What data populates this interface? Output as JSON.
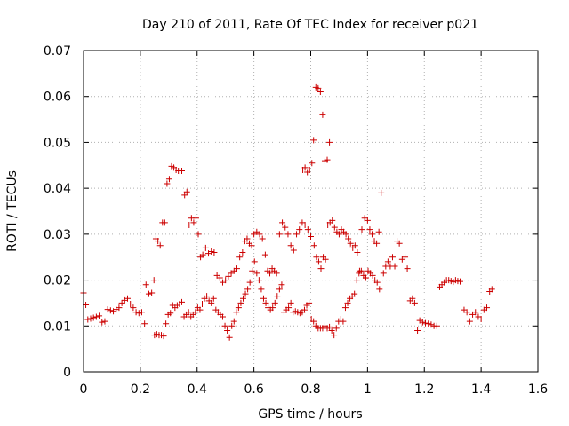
{
  "chart_data": {
    "type": "scatter",
    "title": "Day 210 of 2011, Rate Of TEC Index for receiver p021",
    "xlabel": "GPS time / hours",
    "ylabel": "ROTI / TECUs",
    "xlim": [
      0,
      1.6
    ],
    "ylim": [
      0,
      0.07
    ],
    "x_ticks": [
      0,
      0.2,
      0.4,
      0.6,
      0.8,
      1,
      1.2,
      1.4,
      1.6
    ],
    "x_tick_labels": [
      "0",
      "0.2",
      "0.4",
      "0.6",
      "0.8",
      "1",
      "1.2",
      "1.4",
      "1.6"
    ],
    "y_ticks": [
      0,
      0.01,
      0.02,
      0.03,
      0.04,
      0.05,
      0.06,
      0.07
    ],
    "y_tick_labels": [
      "0",
      "0.01",
      "0.02",
      "0.03",
      "0.04",
      "0.05",
      "0.06",
      "0.07"
    ],
    "grid": true,
    "marker": "+",
    "marker_color": "#cc0000",
    "series": [
      {
        "points": [
          [
            0.0,
            0.0172
          ],
          [
            0.008,
            0.0146
          ],
          [
            0.015,
            0.0114
          ],
          [
            0.025,
            0.0116
          ],
          [
            0.035,
            0.0118
          ],
          [
            0.045,
            0.012
          ],
          [
            0.055,
            0.0122
          ],
          [
            0.065,
            0.0108
          ],
          [
            0.075,
            0.011
          ],
          [
            0.085,
            0.0136
          ],
          [
            0.095,
            0.0134
          ],
          [
            0.105,
            0.0132
          ],
          [
            0.115,
            0.0136
          ],
          [
            0.125,
            0.014
          ],
          [
            0.135,
            0.015
          ],
          [
            0.145,
            0.0156
          ],
          [
            0.155,
            0.016
          ],
          [
            0.165,
            0.0148
          ],
          [
            0.175,
            0.014
          ],
          [
            0.185,
            0.013
          ],
          [
            0.195,
            0.0128
          ],
          [
            0.205,
            0.013
          ],
          [
            0.215,
            0.0105
          ],
          [
            0.22,
            0.019
          ],
          [
            0.23,
            0.017
          ],
          [
            0.24,
            0.0172
          ],
          [
            0.248,
            0.02
          ],
          [
            0.255,
            0.029
          ],
          [
            0.262,
            0.0285
          ],
          [
            0.27,
            0.0275
          ],
          [
            0.278,
            0.0325
          ],
          [
            0.286,
            0.0325
          ],
          [
            0.294,
            0.041
          ],
          [
            0.302,
            0.042
          ],
          [
            0.31,
            0.0448
          ],
          [
            0.318,
            0.0445
          ],
          [
            0.326,
            0.044
          ],
          [
            0.334,
            0.0438
          ],
          [
            0.346,
            0.0438
          ],
          [
            0.356,
            0.0385
          ],
          [
            0.364,
            0.0392
          ],
          [
            0.372,
            0.032
          ],
          [
            0.38,
            0.0335
          ],
          [
            0.388,
            0.0325
          ],
          [
            0.396,
            0.0335
          ],
          [
            0.404,
            0.03
          ],
          [
            0.412,
            0.025
          ],
          [
            0.42,
            0.0255
          ],
          [
            0.43,
            0.027
          ],
          [
            0.44,
            0.0258
          ],
          [
            0.45,
            0.0262
          ],
          [
            0.46,
            0.026
          ],
          [
            0.47,
            0.021
          ],
          [
            0.48,
            0.0205
          ],
          [
            0.49,
            0.0195
          ],
          [
            0.5,
            0.02
          ],
          [
            0.51,
            0.0208
          ],
          [
            0.52,
            0.0215
          ],
          [
            0.53,
            0.022
          ],
          [
            0.54,
            0.0225
          ],
          [
            0.55,
            0.025
          ],
          [
            0.56,
            0.026
          ],
          [
            0.568,
            0.0285
          ],
          [
            0.576,
            0.029
          ],
          [
            0.584,
            0.028
          ],
          [
            0.592,
            0.0275
          ],
          [
            0.6,
            0.03
          ],
          [
            0.61,
            0.0305
          ],
          [
            0.62,
            0.03
          ],
          [
            0.63,
            0.029
          ],
          [
            0.64,
            0.0255
          ],
          [
            0.648,
            0.022
          ],
          [
            0.656,
            0.0215
          ],
          [
            0.664,
            0.0225
          ],
          [
            0.672,
            0.022
          ],
          [
            0.68,
            0.0215
          ],
          [
            0.69,
            0.03
          ],
          [
            0.7,
            0.0325
          ],
          [
            0.71,
            0.0315
          ],
          [
            0.72,
            0.03
          ],
          [
            0.73,
            0.0275
          ],
          [
            0.74,
            0.0265
          ],
          [
            0.75,
            0.03
          ],
          [
            0.76,
            0.031
          ],
          [
            0.77,
            0.0325
          ],
          [
            0.78,
            0.032
          ],
          [
            0.79,
            0.031
          ],
          [
            0.772,
            0.044
          ],
          [
            0.78,
            0.0445
          ],
          [
            0.788,
            0.0435
          ],
          [
            0.796,
            0.044
          ],
          [
            0.804,
            0.0455
          ],
          [
            0.81,
            0.0505
          ],
          [
            0.818,
            0.062
          ],
          [
            0.826,
            0.0618
          ],
          [
            0.834,
            0.061
          ],
          [
            0.842,
            0.056
          ],
          [
            0.85,
            0.046
          ],
          [
            0.858,
            0.0462
          ],
          [
            0.866,
            0.05
          ],
          [
            0.8,
            0.0295
          ],
          [
            0.812,
            0.0275
          ],
          [
            0.82,
            0.025
          ],
          [
            0.828,
            0.024
          ],
          [
            0.836,
            0.0225
          ],
          [
            0.844,
            0.025
          ],
          [
            0.852,
            0.0245
          ],
          [
            0.86,
            0.032
          ],
          [
            0.868,
            0.0325
          ],
          [
            0.876,
            0.033
          ],
          [
            0.884,
            0.0315
          ],
          [
            0.892,
            0.0305
          ],
          [
            0.9,
            0.03
          ],
          [
            0.908,
            0.031
          ],
          [
            0.916,
            0.0305
          ],
          [
            0.924,
            0.03
          ],
          [
            0.932,
            0.029
          ],
          [
            0.94,
            0.028
          ],
          [
            0.948,
            0.027
          ],
          [
            0.956,
            0.0275
          ],
          [
            0.964,
            0.026
          ],
          [
            0.972,
            0.022
          ],
          [
            0.98,
            0.031
          ],
          [
            0.99,
            0.0335
          ],
          [
            1.0,
            0.033
          ],
          [
            1.008,
            0.031
          ],
          [
            1.016,
            0.03
          ],
          [
            1.024,
            0.0285
          ],
          [
            1.032,
            0.028
          ],
          [
            1.04,
            0.0305
          ],
          [
            1.048,
            0.039
          ],
          [
            1.056,
            0.0215
          ],
          [
            1.064,
            0.023
          ],
          [
            1.072,
            0.024
          ],
          [
            1.08,
            0.023
          ],
          [
            1.088,
            0.025
          ],
          [
            1.096,
            0.023
          ],
          [
            1.104,
            0.0285
          ],
          [
            1.112,
            0.028
          ],
          [
            1.122,
            0.0245
          ],
          [
            1.132,
            0.025
          ],
          [
            1.14,
            0.0225
          ],
          [
            1.15,
            0.0155
          ],
          [
            1.158,
            0.016
          ],
          [
            1.166,
            0.015
          ],
          [
            1.176,
            0.009
          ],
          [
            1.184,
            0.0112
          ],
          [
            1.194,
            0.0108
          ],
          [
            1.204,
            0.0106
          ],
          [
            1.214,
            0.0105
          ],
          [
            1.224,
            0.0103
          ],
          [
            1.234,
            0.01
          ],
          [
            1.244,
            0.01
          ],
          [
            1.254,
            0.0185
          ],
          [
            1.262,
            0.019
          ],
          [
            1.27,
            0.0195
          ],
          [
            1.278,
            0.02
          ],
          [
            1.286,
            0.02
          ],
          [
            1.294,
            0.0198
          ],
          [
            1.302,
            0.0196
          ],
          [
            1.31,
            0.02
          ],
          [
            1.318,
            0.0198
          ],
          [
            1.326,
            0.0197
          ],
          [
            1.34,
            0.0135
          ],
          [
            1.35,
            0.013
          ],
          [
            1.36,
            0.011
          ],
          [
            1.37,
            0.0125
          ],
          [
            1.38,
            0.013
          ],
          [
            1.39,
            0.012
          ],
          [
            1.4,
            0.0115
          ],
          [
            1.41,
            0.0135
          ],
          [
            1.42,
            0.014
          ],
          [
            1.43,
            0.0175
          ],
          [
            1.438,
            0.018
          ],
          [
            0.25,
            0.008
          ],
          [
            0.258,
            0.0082
          ],
          [
            0.266,
            0.008
          ],
          [
            0.274,
            0.008
          ],
          [
            0.282,
            0.0078
          ],
          [
            0.29,
            0.0105
          ],
          [
            0.298,
            0.0125
          ],
          [
            0.306,
            0.0128
          ],
          [
            0.314,
            0.0145
          ],
          [
            0.322,
            0.014
          ],
          [
            0.33,
            0.0145
          ],
          [
            0.338,
            0.0148
          ],
          [
            0.346,
            0.0152
          ],
          [
            0.354,
            0.012
          ],
          [
            0.362,
            0.0125
          ],
          [
            0.37,
            0.013
          ],
          [
            0.378,
            0.012
          ],
          [
            0.386,
            0.0125
          ],
          [
            0.394,
            0.013
          ],
          [
            0.402,
            0.014
          ],
          [
            0.41,
            0.0135
          ],
          [
            0.418,
            0.0148
          ],
          [
            0.426,
            0.016
          ],
          [
            0.434,
            0.0165
          ],
          [
            0.442,
            0.0155
          ],
          [
            0.45,
            0.015
          ],
          [
            0.458,
            0.016
          ],
          [
            0.466,
            0.0135
          ],
          [
            0.474,
            0.013
          ],
          [
            0.482,
            0.0125
          ],
          [
            0.49,
            0.012
          ],
          [
            0.498,
            0.01
          ],
          [
            0.506,
            0.009
          ],
          [
            0.514,
            0.0075
          ],
          [
            0.522,
            0.01
          ],
          [
            0.53,
            0.011
          ],
          [
            0.538,
            0.013
          ],
          [
            0.546,
            0.014
          ],
          [
            0.554,
            0.015
          ],
          [
            0.562,
            0.016
          ],
          [
            0.57,
            0.017
          ],
          [
            0.578,
            0.018
          ],
          [
            0.586,
            0.0195
          ],
          [
            0.594,
            0.022
          ],
          [
            0.602,
            0.024
          ],
          [
            0.61,
            0.0215
          ],
          [
            0.618,
            0.02
          ],
          [
            0.626,
            0.018
          ],
          [
            0.634,
            0.016
          ],
          [
            0.642,
            0.015
          ],
          [
            0.65,
            0.014
          ],
          [
            0.658,
            0.0135
          ],
          [
            0.666,
            0.014
          ],
          [
            0.674,
            0.015
          ],
          [
            0.682,
            0.0165
          ],
          [
            0.69,
            0.018
          ],
          [
            0.698,
            0.019
          ],
          [
            0.706,
            0.013
          ],
          [
            0.714,
            0.0135
          ],
          [
            0.722,
            0.014
          ],
          [
            0.73,
            0.015
          ],
          [
            0.738,
            0.013
          ],
          [
            0.746,
            0.0132
          ],
          [
            0.754,
            0.013
          ],
          [
            0.762,
            0.0128
          ],
          [
            0.77,
            0.013
          ],
          [
            0.778,
            0.0135
          ],
          [
            0.786,
            0.0145
          ],
          [
            0.794,
            0.015
          ],
          [
            0.802,
            0.0115
          ],
          [
            0.81,
            0.011
          ],
          [
            0.818,
            0.01
          ],
          [
            0.826,
            0.0095
          ],
          [
            0.834,
            0.0095
          ],
          [
            0.842,
            0.0095
          ],
          [
            0.85,
            0.01
          ],
          [
            0.858,
            0.0095
          ],
          [
            0.866,
            0.0098
          ],
          [
            0.874,
            0.009
          ],
          [
            0.882,
            0.008
          ],
          [
            0.89,
            0.0095
          ],
          [
            0.898,
            0.011
          ],
          [
            0.906,
            0.0115
          ],
          [
            0.914,
            0.011
          ],
          [
            0.922,
            0.014
          ],
          [
            0.93,
            0.015
          ],
          [
            0.938,
            0.016
          ],
          [
            0.946,
            0.0165
          ],
          [
            0.954,
            0.017
          ],
          [
            0.962,
            0.02
          ],
          [
            0.97,
            0.0215
          ],
          [
            0.978,
            0.022
          ],
          [
            0.986,
            0.021
          ],
          [
            0.994,
            0.0205
          ],
          [
            1.002,
            0.022
          ],
          [
            1.01,
            0.0215
          ],
          [
            1.018,
            0.021
          ],
          [
            1.026,
            0.02
          ],
          [
            1.034,
            0.0195
          ],
          [
            1.042,
            0.018
          ]
        ]
      }
    ]
  }
}
